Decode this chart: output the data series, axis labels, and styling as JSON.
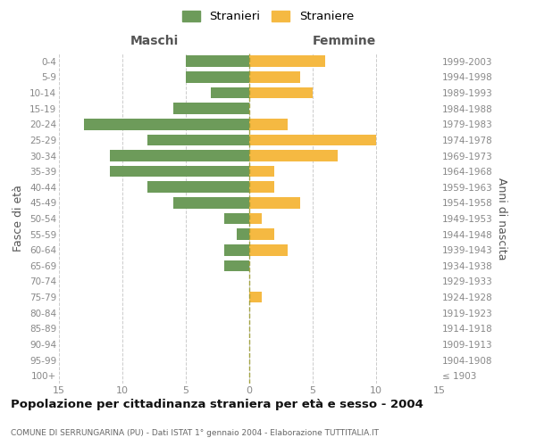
{
  "age_groups": [
    "0-4",
    "5-9",
    "10-14",
    "15-19",
    "20-24",
    "25-29",
    "30-34",
    "35-39",
    "40-44",
    "45-49",
    "50-54",
    "55-59",
    "60-64",
    "65-69",
    "70-74",
    "75-79",
    "80-84",
    "85-89",
    "90-94",
    "95-99",
    "100+"
  ],
  "birth_years": [
    "1999-2003",
    "1994-1998",
    "1989-1993",
    "1984-1988",
    "1979-1983",
    "1974-1978",
    "1969-1973",
    "1964-1968",
    "1959-1963",
    "1954-1958",
    "1949-1953",
    "1944-1948",
    "1939-1943",
    "1934-1938",
    "1929-1933",
    "1924-1928",
    "1919-1923",
    "1914-1918",
    "1909-1913",
    "1904-1908",
    "≤ 1903"
  ],
  "males": [
    5,
    5,
    3,
    6,
    13,
    8,
    11,
    11,
    8,
    6,
    2,
    1,
    2,
    2,
    0,
    0,
    0,
    0,
    0,
    0,
    0
  ],
  "females": [
    6,
    4,
    5,
    0,
    3,
    10,
    7,
    2,
    2,
    4,
    1,
    2,
    3,
    0,
    0,
    1,
    0,
    0,
    0,
    0,
    0
  ],
  "male_color": "#6d9b5a",
  "female_color": "#f5b942",
  "title": "Popolazione per cittadinanza straniera per età e sesso - 2004",
  "subtitle": "COMUNE DI SERRUNGARINA (PU) - Dati ISTAT 1° gennaio 2004 - Elaborazione TUTTITALIA.IT",
  "xlabel_left": "Maschi",
  "xlabel_right": "Femmine",
  "ylabel_left": "Fasce di età",
  "ylabel_right": "Anni di nascita",
  "legend_male": "Stranieri",
  "legend_female": "Straniere",
  "xlim": 15,
  "bg_color": "#ffffff",
  "grid_color": "#cccccc",
  "tick_color": "#888888",
  "header_color": "#555555",
  "title_color": "#111111",
  "subtitle_color": "#666666",
  "center_line_color": "#9a9a2a",
  "title_fontsize": 9.5,
  "subtitle_fontsize": 6.5,
  "tick_fontsize": 7.5,
  "header_fontsize": 10,
  "ylabel_fontsize": 9
}
